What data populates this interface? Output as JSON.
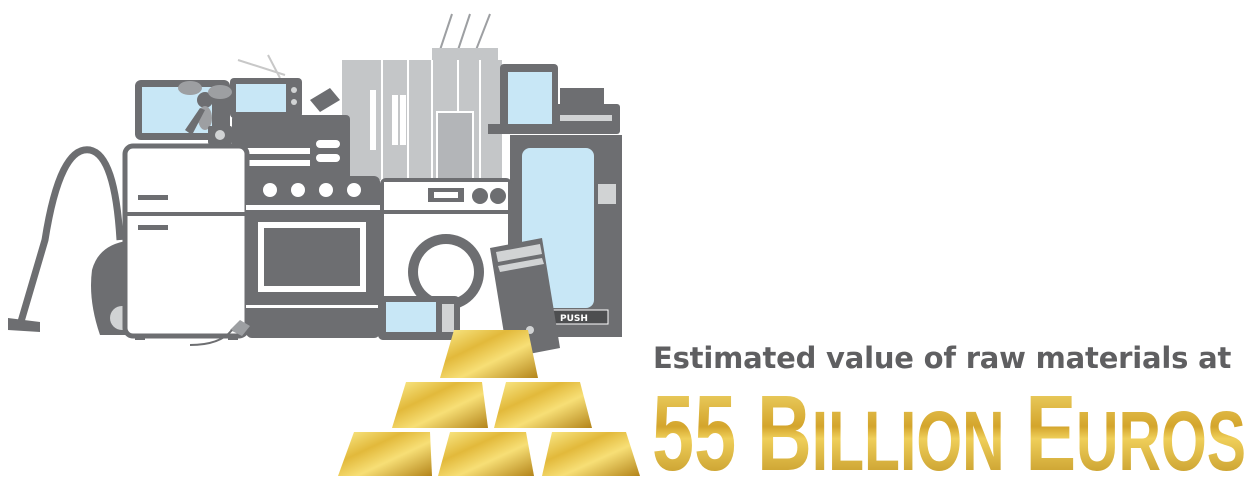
{
  "caption": {
    "subtitle": "Estimated value of raw materials at",
    "headline": "55 Billion Euros"
  },
  "illustration": {
    "items": [
      "vacuum-cleaner-icon",
      "refrigerator-icon",
      "television-icon",
      "fan-icon",
      "camera-icon",
      "printer-icon",
      "stove-oven-icon",
      "server-cabinet-icon",
      "monitor-icon",
      "washing-machine-icon",
      "microwave-icon",
      "pc-tower-icon",
      "vending-machine-icon",
      "gold-bars-icon"
    ],
    "vending_label": "PUSH"
  },
  "colors": {
    "appliance_dark": "#6d6e71",
    "appliance_light": "#d1d3d4",
    "screen_blue": "#c8e7f6",
    "text_grey": "#5f5f61",
    "gold_light": "#f6e27a",
    "gold_dark": "#b88a1b"
  }
}
